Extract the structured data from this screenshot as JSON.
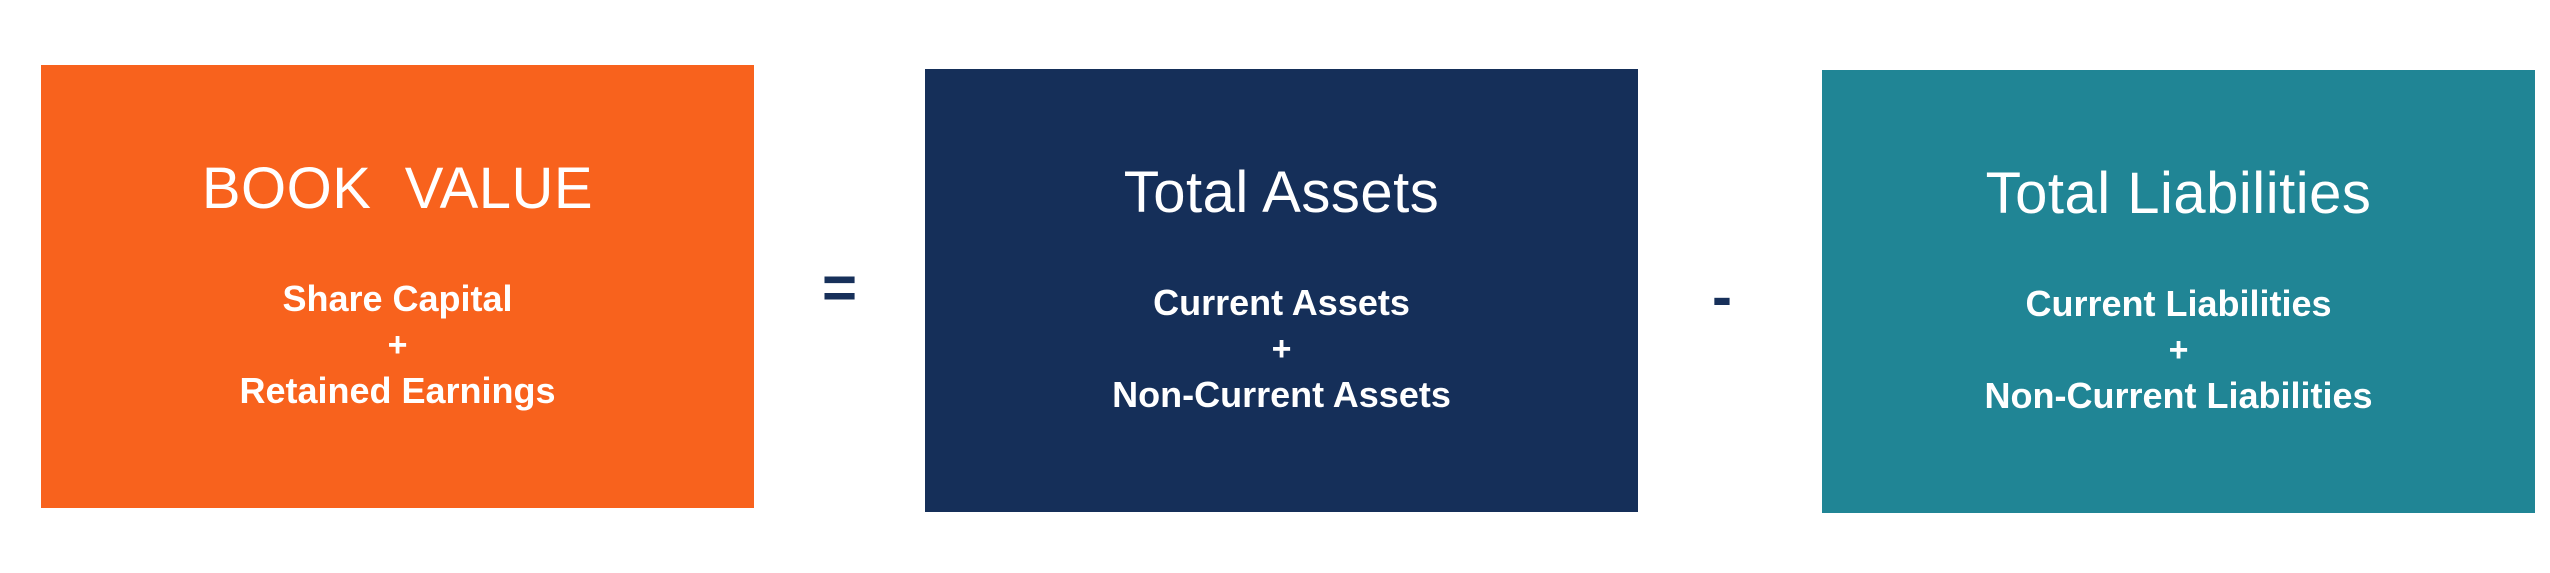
{
  "colors": {
    "orange": "#f8621d",
    "navy": "#152f59",
    "teal": "#208595",
    "operator": "#17305a"
  },
  "book_value": {
    "title": "BOOK  VALUE",
    "line1": "Share Capital",
    "plus": "+",
    "line2": "Retained Earnings"
  },
  "equals": "=",
  "total_assets": {
    "title": "Total Assets",
    "line1": "Current Assets",
    "plus": "+",
    "line2": "Non-Current Assets"
  },
  "minus": "-",
  "total_liabilities": {
    "title": "Total Liabilities",
    "line1": "Current Liabilities",
    "plus": "+",
    "line2": "Non-Current Liabilities"
  }
}
